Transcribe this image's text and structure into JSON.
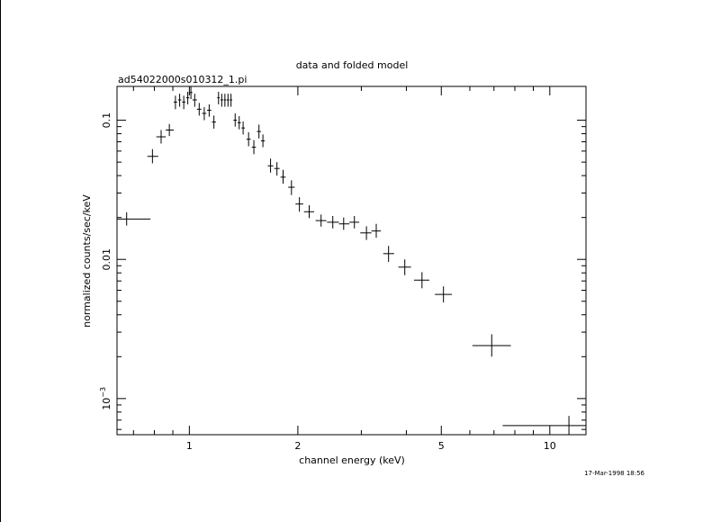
{
  "chart_data": {
    "type": "scatter",
    "title": "data and folded model",
    "subtitle": "ad54022000s010312_1.pi",
    "xlabel": "channel energy (keV)",
    "ylabel": "normalized counts/sec/keV",
    "x_scale": "log",
    "y_scale": "log",
    "xlim": [
      0.63,
      12.6
    ],
    "ylim": [
      0.00055,
      0.175
    ],
    "grid": false,
    "x_ticks": [
      {
        "value": 1,
        "label": "1"
      },
      {
        "value": 2,
        "label": "2"
      },
      {
        "value": 5,
        "label": "5"
      },
      {
        "value": 10,
        "label": "10"
      }
    ],
    "y_ticks": [
      {
        "value": 0.1,
        "label": "0.1"
      },
      {
        "value": 0.01,
        "label": "0.01"
      },
      {
        "value": 0.001,
        "label": "10",
        "exponent": "−3"
      }
    ],
    "series": [
      {
        "points": [
          {
            "x": 0.67,
            "xlo": 0.63,
            "xhi": 0.78,
            "y": 0.0195,
            "ylo": 0.0175,
            "yhi": 0.0218
          },
          {
            "x": 0.79,
            "xlo": 0.765,
            "xhi": 0.82,
            "y": 0.055,
            "ylo": 0.049,
            "yhi": 0.062
          },
          {
            "x": 0.835,
            "xlo": 0.81,
            "xhi": 0.86,
            "y": 0.076,
            "ylo": 0.068,
            "yhi": 0.085
          },
          {
            "x": 0.88,
            "xlo": 0.86,
            "xhi": 0.905,
            "y": 0.085,
            "ylo": 0.077,
            "yhi": 0.094
          },
          {
            "x": 0.915,
            "xlo": 0.905,
            "xhi": 0.925,
            "y": 0.135,
            "ylo": 0.12,
            "yhi": 0.15
          },
          {
            "x": 0.94,
            "xlo": 0.93,
            "xhi": 0.95,
            "y": 0.14,
            "ylo": 0.125,
            "yhi": 0.155
          },
          {
            "x": 0.965,
            "xlo": 0.955,
            "xhi": 0.975,
            "y": 0.135,
            "ylo": 0.12,
            "yhi": 0.15
          },
          {
            "x": 0.99,
            "xlo": 0.98,
            "xhi": 1.0,
            "y": 0.145,
            "ylo": 0.13,
            "yhi": 0.16
          },
          {
            "x": 1.01,
            "xlo": 1.0,
            "xhi": 1.02,
            "y": 0.158,
            "ylo": 0.142,
            "yhi": 0.175
          },
          {
            "x": 1.035,
            "xlo": 1.02,
            "xhi": 1.05,
            "y": 0.14,
            "ylo": 0.125,
            "yhi": 0.155
          },
          {
            "x": 1.065,
            "xlo": 1.05,
            "xhi": 1.08,
            "y": 0.12,
            "ylo": 0.108,
            "yhi": 0.133
          },
          {
            "x": 1.1,
            "xlo": 1.085,
            "xhi": 1.115,
            "y": 0.112,
            "ylo": 0.1,
            "yhi": 0.124
          },
          {
            "x": 1.135,
            "xlo": 1.12,
            "xhi": 1.15,
            "y": 0.118,
            "ylo": 0.106,
            "yhi": 0.13
          },
          {
            "x": 1.17,
            "xlo": 1.155,
            "xhi": 1.185,
            "y": 0.097,
            "ylo": 0.087,
            "yhi": 0.108
          },
          {
            "x": 1.205,
            "xlo": 1.195,
            "xhi": 1.215,
            "y": 0.145,
            "ylo": 0.13,
            "yhi": 0.16
          },
          {
            "x": 1.23,
            "xlo": 1.22,
            "xhi": 1.24,
            "y": 0.14,
            "ylo": 0.125,
            "yhi": 0.155
          },
          {
            "x": 1.255,
            "xlo": 1.245,
            "xhi": 1.265,
            "y": 0.14,
            "ylo": 0.125,
            "yhi": 0.155
          },
          {
            "x": 1.28,
            "xlo": 1.27,
            "xhi": 1.29,
            "y": 0.14,
            "ylo": 0.125,
            "yhi": 0.155
          },
          {
            "x": 1.305,
            "xlo": 1.295,
            "xhi": 1.315,
            "y": 0.14,
            "ylo": 0.125,
            "yhi": 0.155
          },
          {
            "x": 1.34,
            "xlo": 1.325,
            "xhi": 1.355,
            "y": 0.1,
            "ylo": 0.09,
            "yhi": 0.112
          },
          {
            "x": 1.375,
            "xlo": 1.36,
            "xhi": 1.39,
            "y": 0.096,
            "ylo": 0.086,
            "yhi": 0.107
          },
          {
            "x": 1.41,
            "xlo": 1.395,
            "xhi": 1.425,
            "y": 0.088,
            "ylo": 0.079,
            "yhi": 0.098
          },
          {
            "x": 1.46,
            "xlo": 1.44,
            "xhi": 1.48,
            "y": 0.073,
            "ylo": 0.065,
            "yhi": 0.082
          },
          {
            "x": 1.51,
            "xlo": 1.49,
            "xhi": 1.53,
            "y": 0.064,
            "ylo": 0.057,
            "yhi": 0.072
          },
          {
            "x": 1.56,
            "xlo": 1.54,
            "xhi": 1.58,
            "y": 0.083,
            "ylo": 0.074,
            "yhi": 0.093
          },
          {
            "x": 1.6,
            "xlo": 1.58,
            "xhi": 1.62,
            "y": 0.071,
            "ylo": 0.064,
            "yhi": 0.079
          },
          {
            "x": 1.68,
            "xlo": 1.65,
            "xhi": 1.71,
            "y": 0.047,
            "ylo": 0.042,
            "yhi": 0.053
          },
          {
            "x": 1.75,
            "xlo": 1.72,
            "xhi": 1.78,
            "y": 0.045,
            "ylo": 0.04,
            "yhi": 0.05
          },
          {
            "x": 1.82,
            "xlo": 1.79,
            "xhi": 1.85,
            "y": 0.039,
            "ylo": 0.035,
            "yhi": 0.044
          },
          {
            "x": 1.92,
            "xlo": 1.88,
            "xhi": 1.96,
            "y": 0.033,
            "ylo": 0.029,
            "yhi": 0.037
          },
          {
            "x": 2.02,
            "xlo": 1.97,
            "xhi": 2.07,
            "y": 0.025,
            "ylo": 0.022,
            "yhi": 0.028
          },
          {
            "x": 2.15,
            "xlo": 2.08,
            "xhi": 2.22,
            "y": 0.022,
            "ylo": 0.0198,
            "yhi": 0.0245
          },
          {
            "x": 2.32,
            "xlo": 2.24,
            "xhi": 2.4,
            "y": 0.019,
            "ylo": 0.0172,
            "yhi": 0.021
          },
          {
            "x": 2.5,
            "xlo": 2.41,
            "xhi": 2.6,
            "y": 0.0185,
            "ylo": 0.0167,
            "yhi": 0.0205
          },
          {
            "x": 2.68,
            "xlo": 2.6,
            "xhi": 2.78,
            "y": 0.018,
            "ylo": 0.0163,
            "yhi": 0.02
          },
          {
            "x": 2.87,
            "xlo": 2.78,
            "xhi": 2.96,
            "y": 0.0185,
            "ylo": 0.0167,
            "yhi": 0.0205
          },
          {
            "x": 3.1,
            "xlo": 2.98,
            "xhi": 3.2,
            "y": 0.0155,
            "ylo": 0.0138,
            "yhi": 0.0173
          },
          {
            "x": 3.3,
            "xlo": 3.2,
            "xhi": 3.4,
            "y": 0.016,
            "ylo": 0.0143,
            "yhi": 0.018
          },
          {
            "x": 3.57,
            "xlo": 3.45,
            "xhi": 3.7,
            "y": 0.011,
            "ylo": 0.0096,
            "yhi": 0.0125
          },
          {
            "x": 3.96,
            "xlo": 3.8,
            "xhi": 4.12,
            "y": 0.0088,
            "ylo": 0.0077,
            "yhi": 0.01
          },
          {
            "x": 4.42,
            "xlo": 4.2,
            "xhi": 4.63,
            "y": 0.0071,
            "ylo": 0.0062,
            "yhi": 0.0081
          },
          {
            "x": 5.07,
            "xlo": 4.8,
            "xhi": 5.35,
            "y": 0.0056,
            "ylo": 0.0049,
            "yhi": 0.0064
          },
          {
            "x": 6.9,
            "xlo": 6.1,
            "xhi": 7.8,
            "y": 0.0024,
            "ylo": 0.002,
            "yhi": 0.0029
          },
          {
            "x": 11.3,
            "xlo": 7.4,
            "xhi": 12.6,
            "y": 0.00064,
            "ylo": 0.00055,
            "yhi": 0.00075
          }
        ]
      }
    ]
  },
  "footer": {
    "timestamp": "17-Mar-1998 18:56"
  }
}
